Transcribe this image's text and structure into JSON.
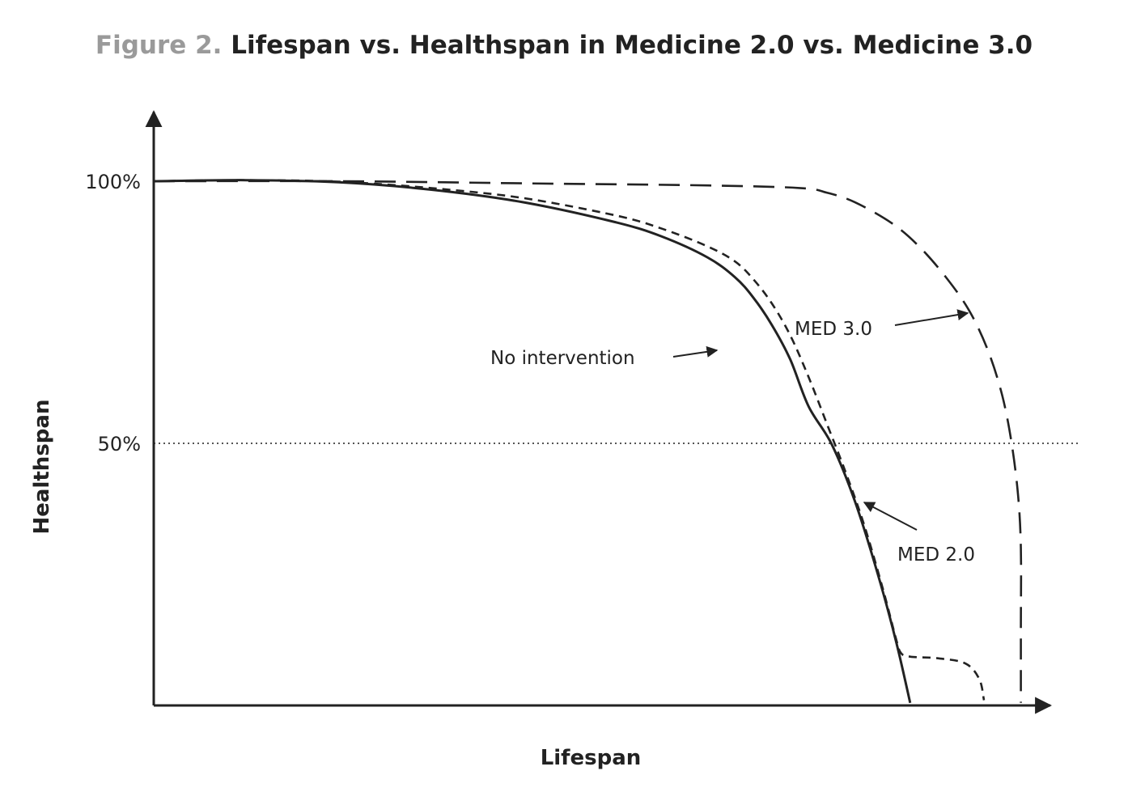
{
  "figure": {
    "prefix": "Figure 2.",
    "title": "Lifespan vs. Healthspan in Medicine 2.0 vs. Medicine 3.0"
  },
  "chart_data": {
    "type": "line",
    "title": "Figure 2. Lifespan vs. Healthspan in Medicine 2.0 vs. Medicine 3.0",
    "xlabel": "Lifespan",
    "ylabel": "Healthspan",
    "ylim": [
      0,
      112
    ],
    "xlim": [
      0,
      100
    ],
    "yticks": [
      {
        "value": 50,
        "label": "50%"
      },
      {
        "value": 100,
        "label": "100%"
      }
    ],
    "reference_line": {
      "y": 50,
      "style": "dotted"
    },
    "grid": false,
    "series": [
      {
        "name": "No intervention",
        "style": "solid",
        "points": [
          [
            0,
            100
          ],
          [
            10,
            100.2
          ],
          [
            20,
            99.8
          ],
          [
            30,
            98.4
          ],
          [
            40,
            96
          ],
          [
            50,
            92.2
          ],
          [
            55,
            89.5
          ],
          [
            60,
            85.5
          ],
          [
            63,
            81.7
          ],
          [
            65,
            77.8
          ],
          [
            67,
            72.6
          ],
          [
            69,
            66
          ],
          [
            71,
            57
          ],
          [
            73.5,
            49.8
          ],
          [
            76,
            39
          ],
          [
            78.5,
            25
          ],
          [
            80.5,
            12
          ],
          [
            82,
            0.5
          ]
        ]
      },
      {
        "name": "MED 2.0",
        "style": "short-dash",
        "points": [
          [
            0,
            100
          ],
          [
            10,
            100.2
          ],
          [
            20,
            99.9
          ],
          [
            30,
            98.7
          ],
          [
            40,
            96.8
          ],
          [
            50,
            93.5
          ],
          [
            55,
            91
          ],
          [
            60,
            87.6
          ],
          [
            63,
            84.7
          ],
          [
            65,
            81.3
          ],
          [
            67,
            76.7
          ],
          [
            69,
            70.6
          ],
          [
            71,
            62.6
          ],
          [
            73,
            53.6
          ],
          [
            75,
            44.5
          ],
          [
            77,
            34.5
          ],
          [
            79,
            22.5
          ],
          [
            80.5,
            12.5
          ],
          [
            81,
            10
          ],
          [
            82,
            9.3
          ],
          [
            85,
            9
          ],
          [
            88,
            8
          ],
          [
            89.5,
            5
          ],
          [
            90,
            1
          ]
        ]
      },
      {
        "name": "MED 3.0",
        "style": "long-dash",
        "points": [
          [
            0,
            100
          ],
          [
            20,
            100
          ],
          [
            40,
            99.6
          ],
          [
            60,
            99.2
          ],
          [
            70,
            98.7
          ],
          [
            73,
            97.8
          ],
          [
            76,
            96
          ],
          [
            80,
            92
          ],
          [
            83,
            87.5
          ],
          [
            86,
            81.4
          ],
          [
            88.5,
            75
          ],
          [
            90.5,
            67.4
          ],
          [
            92,
            59
          ],
          [
            93,
            50
          ],
          [
            93.7,
            40
          ],
          [
            94,
            30
          ],
          [
            94,
            15
          ],
          [
            94,
            0.5
          ]
        ]
      }
    ],
    "annotations": [
      {
        "text": "No intervention",
        "points_to": "No intervention"
      },
      {
        "text": "MED 3.0",
        "points_to": "MED 3.0"
      },
      {
        "text": "MED 2.0",
        "points_to": "MED 2.0"
      }
    ]
  }
}
